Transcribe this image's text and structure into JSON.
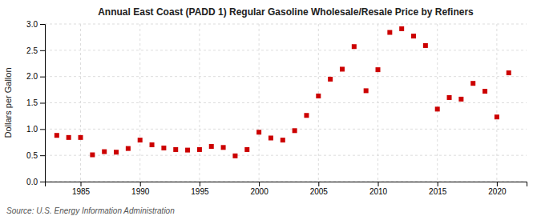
{
  "chart_data": {
    "type": "scatter",
    "title": "Annual East Coast (PADD 1) Regular Gasoline Wholesale/Resale Price by Refiners",
    "ylabel": "Dollars per Gallon",
    "source": "Source: U.S. Energy Information Administration",
    "color": "#cc0000",
    "marker": "square",
    "grid": true,
    "xlim": [
      1982,
      2022.5
    ],
    "ylim": [
      0.0,
      3.0
    ],
    "xticks": [
      1985,
      1990,
      1995,
      2000,
      2005,
      2010,
      2015,
      2020
    ],
    "yticks": [
      {
        "value": 0.0,
        "label": "0.0"
      },
      0.5,
      {
        "value": 1.0,
        "label": "1.0"
      },
      1.5,
      {
        "value": 2.0,
        "label": "2.0"
      },
      2.5,
      {
        "value": 3.0,
        "label": "3.0"
      }
    ],
    "x": [
      1983,
      1984,
      1985,
      1986,
      1987,
      1988,
      1989,
      1990,
      1991,
      1992,
      1993,
      1994,
      1995,
      1996,
      1997,
      1998,
      1999,
      2000,
      2001,
      2002,
      2003,
      2004,
      2005,
      2006,
      2007,
      2008,
      2009,
      2010,
      2011,
      2012,
      2013,
      2014,
      2015,
      2016,
      2017,
      2018,
      2019,
      2020,
      2021
    ],
    "values": [
      0.88,
      0.84,
      0.84,
      0.51,
      0.57,
      0.56,
      0.63,
      0.79,
      0.7,
      0.64,
      0.61,
      0.6,
      0.61,
      0.67,
      0.65,
      0.49,
      0.61,
      0.94,
      0.83,
      0.79,
      0.97,
      1.26,
      1.63,
      1.95,
      2.14,
      2.57,
      1.73,
      2.13,
      2.84,
      2.91,
      2.77,
      2.59,
      1.38,
      1.6,
      1.57,
      1.87,
      1.72,
      1.23,
      2.07
    ]
  }
}
